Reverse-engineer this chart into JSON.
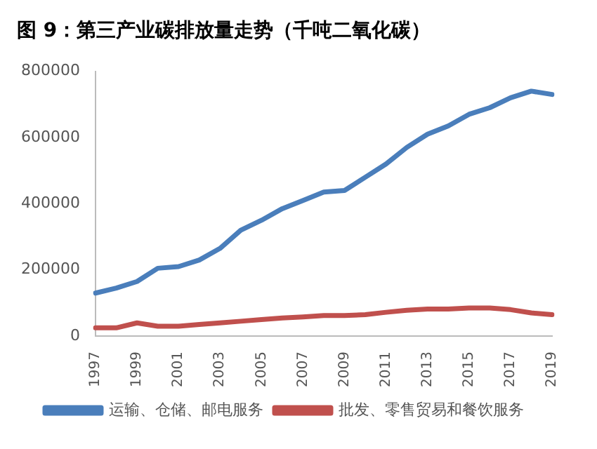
{
  "chart_data": {
    "type": "line",
    "title": "图 9：第三产业碳排放量走势（千吨二氧化碳）",
    "categories": [
      "1997",
      null,
      "1999",
      null,
      "2001",
      null,
      "2003",
      null,
      "2005",
      null,
      "2007",
      null,
      "2009",
      null,
      "2011",
      null,
      "2013",
      null,
      "2015",
      null,
      "2017",
      null,
      "2019"
    ],
    "series": [
      {
        "name": "运输、仓储、邮电服务",
        "color": "#4a7ebb",
        "values": [
          130000,
          145000,
          165000,
          205000,
          210000,
          230000,
          265000,
          320000,
          350000,
          385000,
          410000,
          435000,
          440000,
          480000,
          520000,
          570000,
          610000,
          635000,
          670000,
          690000,
          720000,
          740000,
          730000
        ]
      },
      {
        "name": "批发、零售贸易和餐饮服务",
        "color": "#c0504d",
        "values": [
          25000,
          25000,
          40000,
          30000,
          30000,
          35000,
          40000,
          45000,
          50000,
          55000,
          58000,
          62000,
          62000,
          65000,
          72000,
          78000,
          82000,
          82000,
          85000,
          85000,
          80000,
          70000,
          65000
        ]
      }
    ],
    "ylim": [
      0,
      800000
    ],
    "yticks": [
      0,
      200000,
      400000,
      600000,
      800000
    ],
    "grid": false,
    "legend": "bottom",
    "marker": "none",
    "line_style": "solid"
  }
}
